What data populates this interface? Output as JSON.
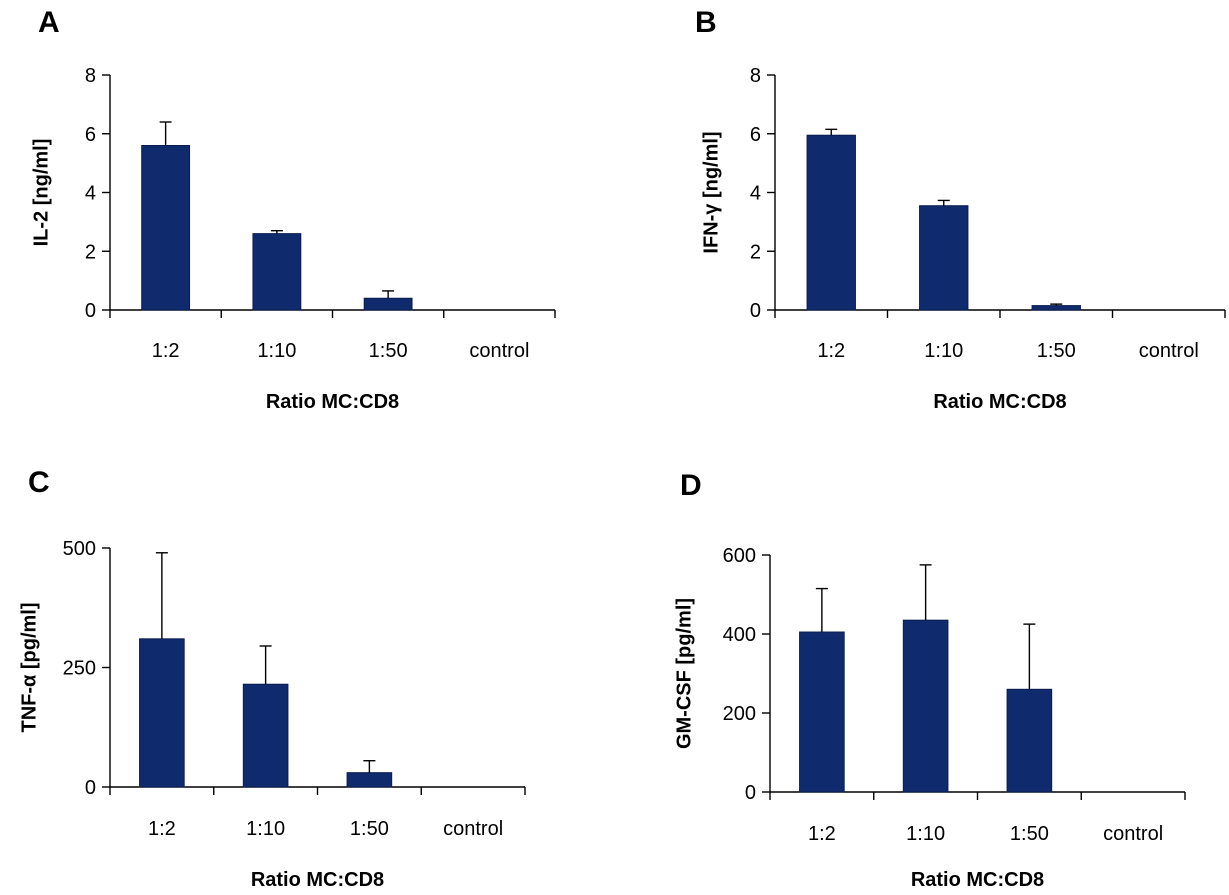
{
  "chart_data": [
    {
      "type": "bar",
      "panel": "A",
      "categories": [
        "1:2",
        "1:10",
        "1:50",
        "control"
      ],
      "values": [
        5.6,
        2.6,
        0.4,
        0
      ],
      "errors": [
        0.8,
        0.1,
        0.25,
        0
      ],
      "yticks": [
        "0",
        "2",
        "4",
        "6",
        "8"
      ],
      "ylim": [
        0,
        8
      ],
      "xlabel": "Ratio MC:CD8",
      "ylabel": "IL-2 [ng/ml]",
      "grid": false
    },
    {
      "type": "bar",
      "panel": "B",
      "categories": [
        "1:2",
        "1:10",
        "1:50",
        "control"
      ],
      "values": [
        5.95,
        3.55,
        0.15,
        0
      ],
      "errors": [
        0.2,
        0.18,
        0.05,
        0
      ],
      "yticks": [
        "0",
        "2",
        "4",
        "6",
        "8"
      ],
      "ylim": [
        0,
        8
      ],
      "xlabel": "Ratio MC:CD8",
      "ylabel": "IFN-γ [ng/ml]",
      "grid": false
    },
    {
      "type": "bar",
      "panel": "C",
      "categories": [
        "1:2",
        "1:10",
        "1:50",
        "control"
      ],
      "values": [
        310,
        215,
        30,
        0
      ],
      "errors": [
        180,
        80,
        25,
        0
      ],
      "yticks": [
        "0",
        "250",
        "500"
      ],
      "ylim": [
        0,
        500
      ],
      "xlabel": "Ratio MC:CD8",
      "ylabel": "TNF-α [pg/ml]",
      "grid": false
    },
    {
      "type": "bar",
      "panel": "D",
      "categories": [
        "1:2",
        "1:10",
        "1:50",
        "control"
      ],
      "values": [
        405,
        435,
        260,
        0
      ],
      "errors": [
        110,
        140,
        165,
        0
      ],
      "yticks": [
        "0",
        "200",
        "400",
        "600"
      ],
      "ylim": [
        0,
        600
      ],
      "xlabel": "Ratio MC:CD8",
      "ylabel": "GM-CSF [pg/ml]",
      "grid": false
    }
  ],
  "colors": {
    "bar": "#102A6E",
    "axis": "#000000"
  }
}
